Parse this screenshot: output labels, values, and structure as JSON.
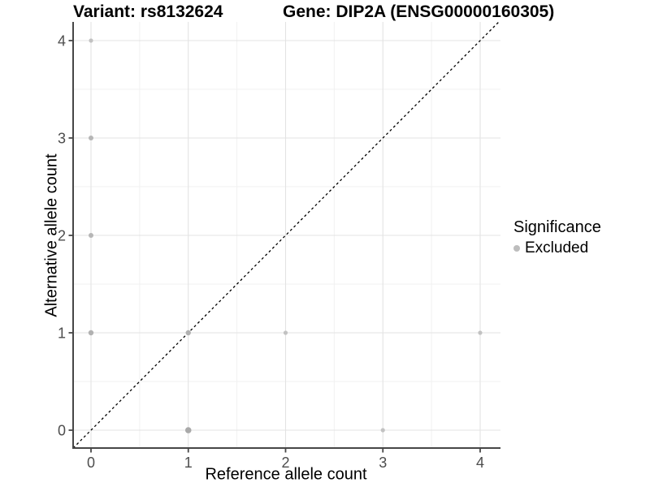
{
  "titles": {
    "variant": "Variant: rs8132624",
    "gene": "Gene: DIP2A (ENSG00000160305)"
  },
  "axes": {
    "x_label": "Reference allele count",
    "y_label": "Alternative allele count"
  },
  "legend": {
    "title": "Significance",
    "items": [
      {
        "label": "Excluded",
        "color": "#bdbdbd"
      }
    ]
  },
  "chart_data": {
    "type": "scatter",
    "title": "Variant: rs8132624 | Gene: DIP2A (ENSG00000160305)",
    "xlabel": "Reference allele count",
    "ylabel": "Alternative allele count",
    "xlim": [
      -0.1837,
      4.209
    ],
    "ylim": [
      -0.1833,
      4.1917
    ],
    "x_ticks": [
      0,
      1,
      2,
      3,
      4
    ],
    "y_ticks": [
      0,
      1,
      2,
      3,
      4
    ],
    "grid": "major+minor",
    "identity_line": {
      "show": true,
      "slope": 1,
      "intercept": 0,
      "style": "dashed",
      "color": "#000000"
    },
    "legend_position": "right",
    "series": [
      {
        "name": "Excluded",
        "points": [
          {
            "x": 0,
            "y": 4,
            "r": 2.6,
            "color": "#c2c2c2"
          },
          {
            "x": 0,
            "y": 3,
            "r": 3.0,
            "color": "#b6b6b6"
          },
          {
            "x": 0,
            "y": 2,
            "r": 3.0,
            "color": "#b6b6b6"
          },
          {
            "x": 0,
            "y": 1,
            "r": 3.2,
            "color": "#b1b1b1"
          },
          {
            "x": 1,
            "y": 1,
            "r": 3.2,
            "color": "#b1b1b1"
          },
          {
            "x": 2,
            "y": 1,
            "r": 2.6,
            "color": "#c2c2c2"
          },
          {
            "x": 4,
            "y": 1,
            "r": 2.6,
            "color": "#c2c2c2"
          },
          {
            "x": 1,
            "y": 0,
            "r": 3.8,
            "color": "#a9a9a9"
          },
          {
            "x": 3,
            "y": 0,
            "r": 2.6,
            "color": "#c2c2c2"
          }
        ]
      }
    ],
    "colors": {
      "grid_major": "#e3e3e3",
      "grid_minor": "#f1f1f1",
      "axis_line": "#474747",
      "tick_text": "#4d4d4d",
      "background": "#ffffff"
    }
  }
}
